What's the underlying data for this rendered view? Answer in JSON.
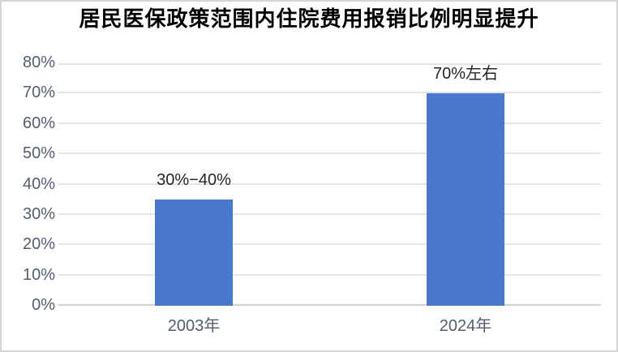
{
  "chart_data": {
    "type": "bar",
    "title": "居民医保政策范围内住院费用报销比例明显提升",
    "categories": [
      "2003年",
      "2024年"
    ],
    "values": [
      35,
      70
    ],
    "data_labels": [
      "30%−40%",
      "70%左右"
    ],
    "xlabel": "",
    "ylabel": "",
    "ylim": [
      0,
      80
    ],
    "ytick_step": 10,
    "ytick_labels": [
      "0%",
      "10%",
      "20%",
      "30%",
      "40%",
      "50%",
      "60%",
      "70%",
      "80%"
    ],
    "grid": true,
    "legend": false,
    "colors": {
      "bar": "#4A78CB",
      "title": "#000000",
      "data_label": "#262626",
      "axis_label": "#545E6D",
      "gridline": "#E4E4E4",
      "axis_line": "#D2D2D2",
      "frame_border": "#D6D6D6",
      "background": "#FFFFFF"
    }
  }
}
